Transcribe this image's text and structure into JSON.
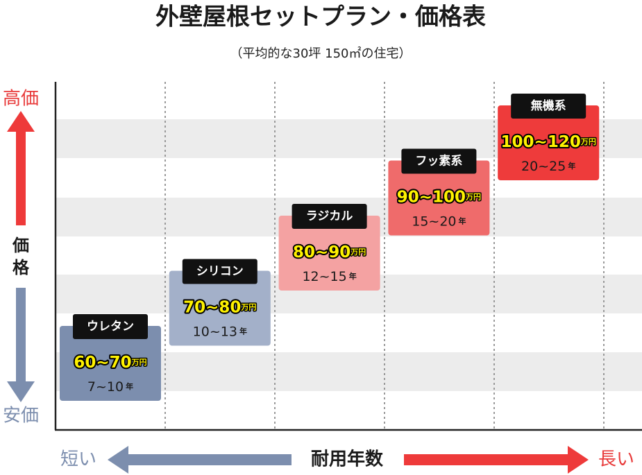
{
  "header": {
    "title": "外壁屋根セットプラン・価格表",
    "subtitle": "（平均的な30坪 150㎡の住宅）"
  },
  "axis": {
    "high": "高価",
    "vertical": [
      "価",
      "格"
    ],
    "low": "安価",
    "short": "短い",
    "title": "耐用年数",
    "long": "長い"
  },
  "cards": [
    {
      "name": "ウレタン",
      "price": "60~70",
      "price_unit": "万円",
      "years": "7~10",
      "years_unit": "年"
    },
    {
      "name": "シリコン",
      "price": "70~80",
      "price_unit": "万円",
      "years": "10~13",
      "years_unit": "年"
    },
    {
      "name": "ラジカル",
      "price": "80~90",
      "price_unit": "万円",
      "years": "12~15",
      "years_unit": "年"
    },
    {
      "name": "フッ素系",
      "price": "90~100",
      "price_unit": "万円",
      "years": "15~20",
      "years_unit": "年"
    },
    {
      "name": "無機系",
      "price": "100~120",
      "price_unit": "万円",
      "years": "20~25",
      "years_unit": "年"
    }
  ]
}
